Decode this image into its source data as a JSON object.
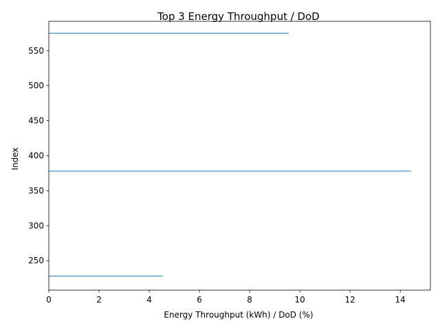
{
  "chart_data": {
    "type": "bar",
    "orientation": "horizontal",
    "title": "Top 3 Energy Throughput / DoD",
    "xlabel": "Energy Throughput (kWh) / DoD (%)",
    "ylabel": "Index",
    "xlim": [
      0,
      15.2
    ],
    "ylim": [
      208,
      592
    ],
    "xticks": [
      0,
      2,
      4,
      6,
      8,
      10,
      12,
      14
    ],
    "yticks": [
      250,
      300,
      350,
      400,
      450,
      500,
      550
    ],
    "grid": false,
    "bar_height": 1,
    "color": "#1f77b4",
    "categories": [
      228,
      378,
      575
    ],
    "values": [
      4.55,
      14.44,
      9.56
    ]
  }
}
